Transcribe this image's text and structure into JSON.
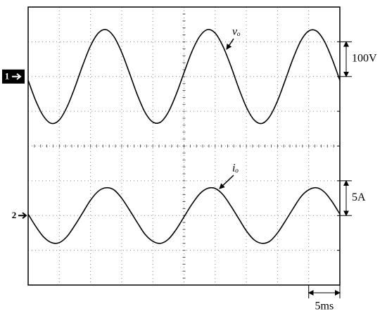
{
  "chart_data": {
    "type": "line",
    "x": [
      0,
      1.25,
      2.5,
      3.75,
      5,
      6.25,
      7.5,
      8.75,
      10,
      11.25,
      12.5,
      13.75,
      15,
      16.25,
      17.5,
      18.75,
      20,
      21.25,
      22.5,
      23.75,
      25,
      26.25,
      27.5,
      28.75,
      30,
      31.25,
      32.5,
      33.75,
      35,
      36.25,
      37.5,
      38.75,
      40,
      41.25,
      42.5,
      43.75,
      45,
      46.25,
      47.5,
      48.75,
      50
    ],
    "xlim": [
      0,
      50
    ],
    "xticks": [
      0,
      5,
      10,
      15,
      20,
      25,
      30,
      35,
      40,
      45,
      50
    ],
    "ylim": [
      -600,
      200
    ],
    "yticks": [
      -600,
      -500,
      -400,
      -300,
      -200,
      -100,
      0,
      100,
      200
    ],
    "y2lim": [
      -10,
      30
    ],
    "y2ticks": [
      -10,
      -5,
      0,
      5,
      10,
      15,
      20,
      25,
      30
    ],
    "grid": true,
    "series": [
      {
        "name": "vₒ",
        "channel": "1",
        "color": "#000000",
        "scale": {
          "value": 100,
          "label": "100V"
        },
        "values": [
          -11,
          -71,
          -115,
          -135,
          -125,
          -87,
          -31,
          32,
          88,
          125,
          135,
          115,
          70,
          10,
          -52,
          -103,
          -131,
          -131,
          -102,
          -51,
          11,
          71,
          115,
          135,
          125,
          87,
          31,
          -32,
          -88,
          -125,
          -135,
          -115,
          -70,
          -10,
          52,
          103,
          131,
          131,
          102,
          51,
          -11
        ]
      },
      {
        "name": "iₒ",
        "channel": "2",
        "axis": "y2",
        "color": "#000000",
        "scale": {
          "value": 5,
          "label": "5A"
        },
        "values": [
          0.2,
          -1.6,
          -3.1,
          -3.9,
          -3.9,
          -3.0,
          -1.4,
          0.4,
          2.2,
          3.5,
          4.0,
          3.7,
          2.5,
          0.8,
          -1.0,
          -2.7,
          -3.7,
          -4.0,
          -3.4,
          -2.0,
          -0.2,
          1.6,
          3.1,
          3.9,
          3.9,
          3.0,
          1.4,
          -0.4,
          -2.2,
          -3.5,
          -4.0,
          -3.7,
          -2.5,
          -0.8,
          1.0,
          2.7,
          3.7,
          4.0,
          3.4,
          2.0,
          0.2
        ]
      }
    ],
    "x_scale": {
      "value": 5,
      "label": "5ms"
    }
  }
}
